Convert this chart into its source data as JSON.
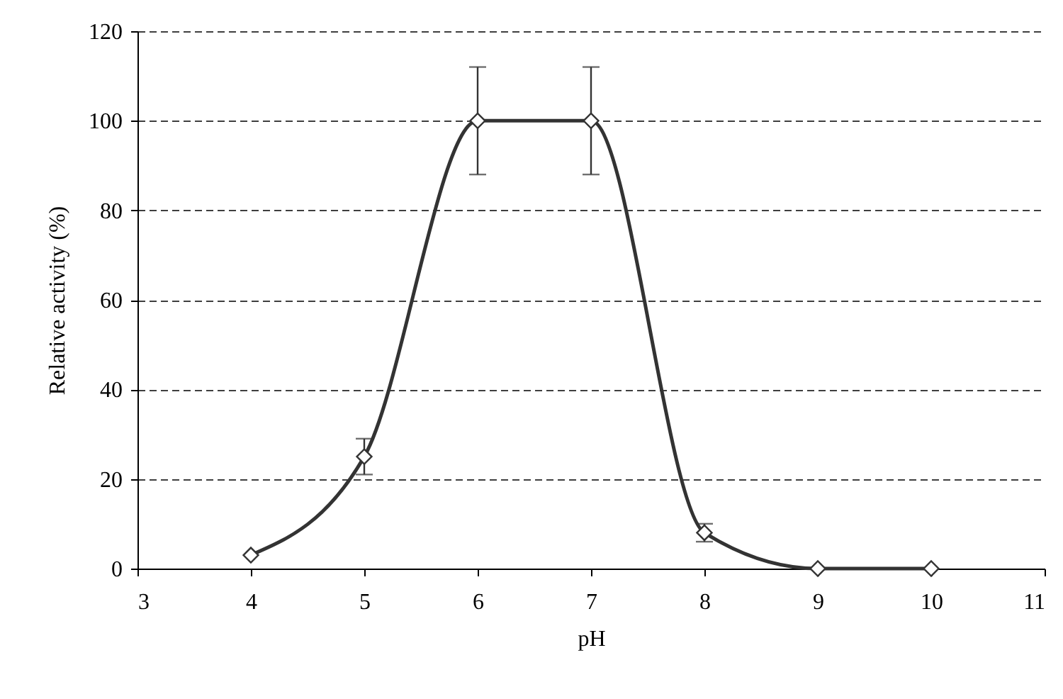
{
  "chart_data": {
    "type": "line",
    "xlabel": "pH",
    "ylabel": "Relative activity  (%)",
    "x": [
      4,
      5,
      6,
      7,
      8,
      9,
      10
    ],
    "series": [
      {
        "color": "#333333",
        "values": [
          3,
          25,
          100,
          100,
          8,
          0,
          0
        ],
        "errors": [
          null,
          4,
          12,
          12,
          2,
          null,
          null
        ]
      }
    ],
    "xlim": [
      3,
      11
    ],
    "xticks": [
      3,
      4,
      5,
      6,
      7,
      8,
      9,
      10,
      11
    ],
    "ylim": [
      0,
      120
    ],
    "yticks": [
      0,
      20,
      40,
      60,
      80,
      100,
      120
    ],
    "grid": "y",
    "marker": "diamond",
    "line_style": "solid"
  }
}
